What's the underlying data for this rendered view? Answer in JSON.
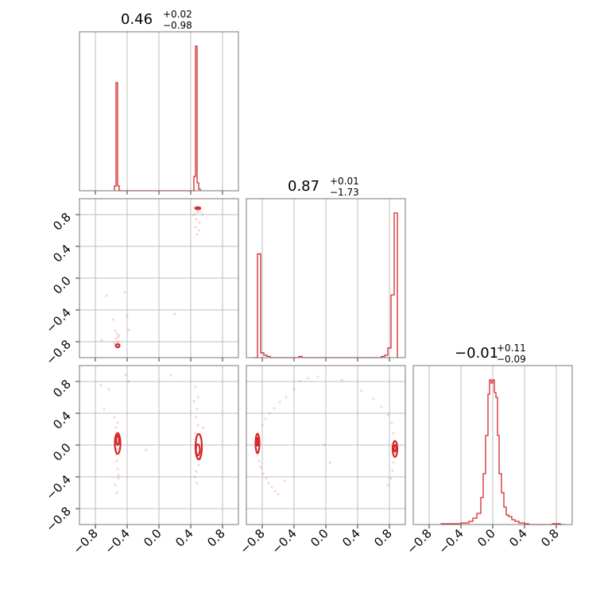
{
  "chart_data": {
    "type": "scatter",
    "plot_kind": "corner",
    "grid": true,
    "line_color": "#d62728",
    "axis_range": [
      -1.0,
      1.0
    ],
    "ticks": [
      {
        "value": -0.8,
        "label": "−0.8"
      },
      {
        "value": -0.4,
        "label": "−0.4"
      },
      {
        "value": 0.0,
        "label": "0.0"
      },
      {
        "value": 0.4,
        "label": "0.4"
      },
      {
        "value": 0.8,
        "label": "0.8"
      }
    ],
    "parameters": [
      {
        "median": "0.46",
        "plus": "+0.02",
        "minus": "−0.98"
      },
      {
        "median": "0.87",
        "plus": "+0.01",
        "minus": "−1.73"
      },
      {
        "median": "−0.01",
        "plus": "+0.11",
        "minus": "−0.09"
      }
    ],
    "histograms": [
      {
        "bin_edges": [
          -0.56,
          -0.54,
          -0.52,
          -0.5,
          0.44,
          0.46,
          0.48,
          0.5,
          0.52
        ],
        "counts": [
          3,
          68,
          3,
          0,
          9,
          91,
          5,
          1
        ]
      },
      {
        "bin_edges": [
          -0.9,
          -0.86,
          -0.82,
          -0.78,
          -0.74,
          -0.7,
          -0.34,
          -0.3,
          0.7,
          0.74,
          0.78,
          0.82,
          0.86,
          0.9
        ],
        "counts": [
          0,
          43,
          2,
          1,
          0.5,
          0,
          0.5,
          0,
          0.5,
          1,
          4,
          26,
          60,
          0
        ]
      },
      {
        "bin_edges": [
          -0.65,
          -0.6,
          -0.5,
          -0.4,
          -0.35,
          -0.3,
          -0.25,
          -0.2,
          -0.15,
          -0.12,
          -0.09,
          -0.06,
          -0.04,
          -0.02,
          0.0,
          0.02,
          0.04,
          0.06,
          0.08,
          0.11,
          0.14,
          0.17,
          0.2,
          0.24,
          0.28,
          0.33,
          0.4,
          0.45,
          0.55,
          0.65,
          0.75,
          0.85,
          0.9
        ],
        "counts": [
          0.5,
          0.5,
          0.5,
          1,
          1,
          2,
          4,
          7,
          17,
          32,
          56,
          82,
          91,
          89,
          91,
          83,
          80,
          56,
          32,
          20,
          11,
          6,
          5,
          3,
          2,
          1,
          0.5,
          0,
          0,
          0,
          0.5,
          0
        ]
      }
    ],
    "pairs": [
      {
        "row": 1,
        "col": 0,
        "points": [
          [
            0.46,
            0.89
          ],
          [
            0.47,
            0.87
          ],
          [
            0.49,
            0.85
          ],
          [
            0.48,
            0.83
          ],
          [
            0.45,
            0.88
          ],
          [
            0.52,
            0.84
          ],
          [
            0.55,
            0.8
          ],
          [
            0.47,
            0.74
          ],
          [
            0.46,
            0.64
          ],
          [
            0.48,
            0.55
          ],
          [
            0.51,
            0.7
          ],
          [
            0.5,
            0.6
          ],
          [
            0.44,
            0.8
          ],
          [
            -0.51,
            -0.86
          ],
          [
            -0.53,
            -0.84
          ],
          [
            -0.5,
            -0.83
          ],
          [
            -0.52,
            -0.8
          ],
          [
            -0.54,
            -0.76
          ],
          [
            -0.53,
            -0.7
          ],
          [
            -0.55,
            -0.66
          ],
          [
            -0.51,
            -0.74
          ],
          [
            -0.56,
            -0.82
          ],
          [
            -0.5,
            -0.72
          ],
          [
            -0.72,
            -0.78
          ],
          [
            -0.38,
            -0.65
          ],
          [
            -0.4,
            -0.48
          ],
          [
            -0.43,
            -0.18
          ],
          [
            -0.66,
            -0.22
          ],
          [
            -0.58,
            -0.52
          ],
          [
            0.2,
            -0.45
          ]
        ],
        "contours": [
          {
            "cx": -0.52,
            "cy": -0.85,
            "rx": 0.025,
            "ry": 0.02
          },
          {
            "cx": 0.49,
            "cy": 0.88,
            "rx": 0.03,
            "ry": 0.012
          }
        ]
      },
      {
        "row": 2,
        "col": 0,
        "points": [
          [
            -0.52,
            0.15
          ],
          [
            -0.53,
            0.1
          ],
          [
            -0.51,
            0.05
          ],
          [
            -0.52,
            -0.05
          ],
          [
            -0.54,
            -0.12
          ],
          [
            -0.53,
            -0.2
          ],
          [
            -0.52,
            -0.3
          ],
          [
            -0.51,
            -0.38
          ],
          [
            -0.55,
            -0.5
          ],
          [
            -0.53,
            -0.6
          ],
          [
            -0.54,
            0.22
          ],
          [
            -0.52,
            0.28
          ],
          [
            -0.51,
            -0.42
          ],
          [
            -0.56,
            0.35
          ],
          [
            -0.69,
            0.45
          ],
          [
            -0.73,
            0.75
          ],
          [
            -0.63,
            0.7
          ],
          [
            -0.38,
            0.8
          ],
          [
            -0.42,
            0.88
          ],
          [
            0.15,
            0.88
          ],
          [
            0.48,
            0.45
          ],
          [
            0.47,
            0.35
          ],
          [
            0.49,
            0.25
          ],
          [
            0.46,
            0.15
          ],
          [
            0.48,
            -0.1
          ],
          [
            0.5,
            -0.25
          ],
          [
            0.47,
            -0.33
          ],
          [
            0.45,
            -0.4
          ],
          [
            0.48,
            -0.48
          ],
          [
            0.49,
            0.6
          ],
          [
            0.44,
            0.55
          ],
          [
            0.56,
            0.22
          ],
          [
            0.52,
            -0.18
          ],
          [
            -0.16,
            -0.06
          ],
          [
            0.46,
            0.73
          ]
        ],
        "contours": [
          {
            "cx": -0.52,
            "cy": 0.02,
            "rx": 0.035,
            "ry": 0.13
          },
          {
            "cx": -0.52,
            "cy": 0.06,
            "rx": 0.018,
            "ry": 0.06
          },
          {
            "cx": 0.5,
            "cy": -0.02,
            "rx": 0.04,
            "ry": 0.16
          },
          {
            "cx": 0.49,
            "cy": -0.06,
            "rx": 0.025,
            "ry": 0.07
          }
        ]
      },
      {
        "row": 2,
        "col": 1,
        "points": [
          [
            -0.86,
            0.15
          ],
          [
            -0.87,
            0.1
          ],
          [
            -0.85,
            -0.05
          ],
          [
            -0.86,
            -0.12
          ],
          [
            -0.84,
            -0.2
          ],
          [
            -0.82,
            -0.28
          ],
          [
            -0.79,
            -0.36
          ],
          [
            -0.75,
            -0.42
          ],
          [
            -0.72,
            -0.48
          ],
          [
            -0.68,
            -0.53
          ],
          [
            -0.64,
            -0.58
          ],
          [
            -0.6,
            -0.62
          ],
          [
            -0.8,
            0.25
          ],
          [
            -0.76,
            0.33
          ],
          [
            -0.71,
            0.4
          ],
          [
            -0.65,
            0.46
          ],
          [
            -0.58,
            0.54
          ],
          [
            -0.5,
            0.6
          ],
          [
            -0.4,
            0.7
          ],
          [
            -0.33,
            0.8
          ],
          [
            -0.22,
            0.84
          ],
          [
            -0.1,
            0.86
          ],
          [
            0.2,
            0.82
          ],
          [
            0.45,
            0.68
          ],
          [
            0.6,
            0.58
          ],
          [
            0.7,
            0.48
          ],
          [
            0.78,
            0.38
          ],
          [
            0.83,
            0.28
          ],
          [
            0.85,
            0.15
          ],
          [
            0.86,
            0.05
          ],
          [
            0.86,
            -0.1
          ],
          [
            0.85,
            -0.22
          ],
          [
            0.84,
            -0.32
          ],
          [
            0.82,
            -0.42
          ],
          [
            0.78,
            -0.5
          ],
          [
            -0.02,
            0.0
          ],
          [
            -0.52,
            -0.45
          ],
          [
            0.05,
            -0.22
          ]
        ],
        "contours": [
          {
            "cx": -0.86,
            "cy": 0.02,
            "rx": 0.025,
            "ry": 0.12
          },
          {
            "cx": -0.86,
            "cy": 0.04,
            "rx": 0.012,
            "ry": 0.05
          },
          {
            "cx": 0.87,
            "cy": -0.05,
            "rx": 0.03,
            "ry": 0.1
          },
          {
            "cx": 0.87,
            "cy": -0.04,
            "rx": 0.015,
            "ry": 0.04
          }
        ]
      }
    ]
  }
}
